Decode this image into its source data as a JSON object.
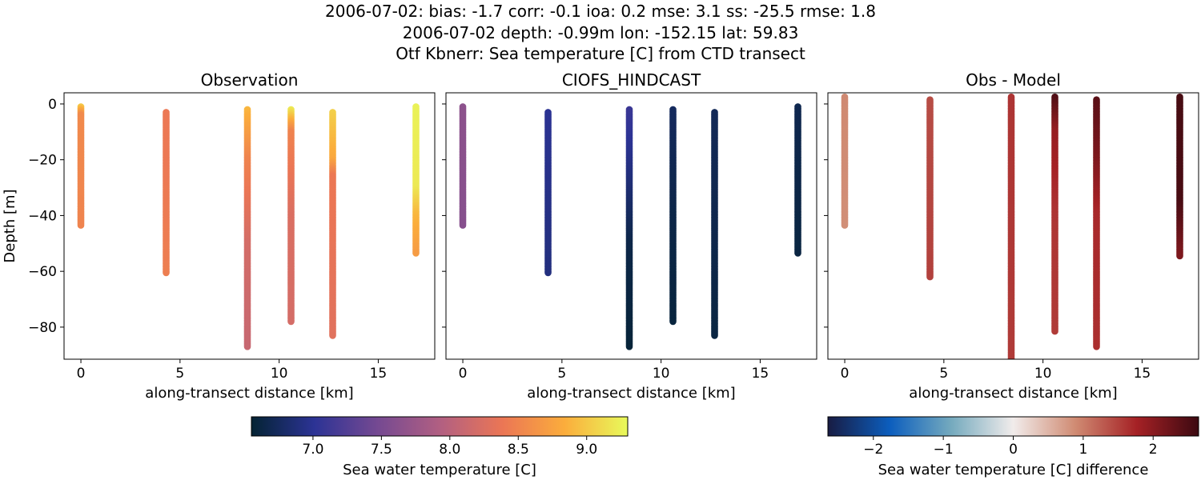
{
  "suptitle": {
    "line1": "2006-07-02: bias: -1.7  corr: -0.1  ioa: 0.2  mse: 3.1  ss: -25.5  rmse: 1.8",
    "line2": "2006-07-02 depth: -0.99m lon: -152.15 lat: 59.83",
    "line3": "Otf Kbnerr: Sea temperature [C] from CTD transect"
  },
  "chart_data": [
    {
      "type": "scatter",
      "title": "Observation",
      "xlabel": "along-transect distance [km]",
      "ylabel": "Depth [m]",
      "xlim": [
        -0.85,
        17.85
      ],
      "ylim": [
        -91.5,
        4.0
      ],
      "xticks": [
        0,
        5,
        10,
        15
      ],
      "yticks": [
        0,
        -20,
        -40,
        -60,
        -80
      ],
      "colormap": "thermal",
      "clim": [
        6.55,
        9.3
      ],
      "grid": false,
      "casts": [
        {
          "x": 0.0,
          "top": -0.99,
          "bottom": -43.5,
          "segments": [
            [
              -0.99,
              9.0
            ],
            [
              -4,
              8.55
            ],
            [
              -43.5,
              8.5
            ]
          ]
        },
        {
          "x": 4.3,
          "top": -3.0,
          "bottom": -60.5,
          "segments": [
            [
              -3.0,
              8.4
            ],
            [
              -20,
              8.4
            ],
            [
              -60.5,
              8.45
            ]
          ]
        },
        {
          "x": 8.4,
          "top": -2.0,
          "bottom": -87.0,
          "segments": [
            [
              -2.0,
              8.9
            ],
            [
              -20,
              8.5
            ],
            [
              -50,
              8.2
            ],
            [
              -87.0,
              8.1
            ]
          ]
        },
        {
          "x": 10.6,
          "top": -2.0,
          "bottom": -78.0,
          "segments": [
            [
              -2.0,
              9.2
            ],
            [
              -10,
              8.5
            ],
            [
              -40,
              8.25
            ],
            [
              -78.0,
              8.2
            ]
          ]
        },
        {
          "x": 12.7,
          "top": -3.0,
          "bottom": -83.0,
          "segments": [
            [
              -3.0,
              9.05
            ],
            [
              -20,
              8.8
            ],
            [
              -26,
              8.4
            ],
            [
              -83.0,
              8.3
            ]
          ]
        },
        {
          "x": 16.9,
          "top": -1.0,
          "bottom": -53.5,
          "segments": [
            [
              -1.0,
              9.25
            ],
            [
              -30,
              9.2
            ],
            [
              -40,
              8.9
            ],
            [
              -53.5,
              8.7
            ]
          ]
        }
      ]
    },
    {
      "type": "scatter",
      "title": "CIOFS_HINDCAST",
      "xlabel": "along-transect distance [km]",
      "ylabel": "",
      "xlim": [
        -0.85,
        17.85
      ],
      "ylim": [
        -91.5,
        4.0
      ],
      "xticks": [
        0,
        5,
        10,
        15
      ],
      "colormap": "thermal",
      "clim": [
        6.55,
        9.3
      ],
      "grid": false,
      "casts": [
        {
          "x": 0.0,
          "top": -0.99,
          "bottom": -43.5,
          "segments": [
            [
              -0.99,
              7.65
            ],
            [
              -43.5,
              7.6
            ]
          ]
        },
        {
          "x": 4.3,
          "top": -3.0,
          "bottom": -60.5,
          "segments": [
            [
              -3.0,
              7.0
            ],
            [
              -30,
              6.95
            ],
            [
              -60.5,
              6.9
            ]
          ]
        },
        {
          "x": 8.4,
          "top": -2.0,
          "bottom": -87.0,
          "segments": [
            [
              -2.0,
              7.1
            ],
            [
              -20,
              6.95
            ],
            [
              -50,
              6.65
            ],
            [
              -87.0,
              6.58
            ]
          ]
        },
        {
          "x": 10.6,
          "top": -2.0,
          "bottom": -78.0,
          "segments": [
            [
              -2.0,
              6.75
            ],
            [
              -40,
              6.65
            ],
            [
              -78.0,
              6.6
            ]
          ]
        },
        {
          "x": 12.7,
          "top": -3.0,
          "bottom": -83.0,
          "segments": [
            [
              -3.0,
              6.72
            ],
            [
              -83.0,
              6.62
            ]
          ]
        },
        {
          "x": 16.9,
          "top": -1.0,
          "bottom": -53.5,
          "segments": [
            [
              -1.0,
              6.68
            ],
            [
              -53.5,
              6.62
            ]
          ]
        }
      ]
    },
    {
      "type": "scatter",
      "title": "Obs - Model",
      "xlabel": "along-transect distance [km]",
      "ylabel": "",
      "xlim": [
        -0.85,
        17.85
      ],
      "ylim": [
        -91.5,
        4.0
      ],
      "xticks": [
        0,
        5,
        10,
        15
      ],
      "colormap": "balance",
      "clim": [
        -2.65,
        2.65
      ],
      "grid": false,
      "casts": [
        {
          "x": 0.0,
          "top": 2.5,
          "bottom": -43.5,
          "segments": [
            [
              2.5,
              0.9
            ],
            [
              -43.5,
              0.85
            ]
          ]
        },
        {
          "x": 4.3,
          "top": 1.5,
          "bottom": -62.0,
          "segments": [
            [
              1.5,
              1.4
            ],
            [
              -62.0,
              1.5
            ]
          ]
        },
        {
          "x": 8.4,
          "top": 2.5,
          "bottom": -91.5,
          "segments": [
            [
              2.5,
              1.6
            ],
            [
              -91.5,
              1.55
            ]
          ]
        },
        {
          "x": 10.6,
          "top": 2.5,
          "bottom": -81.5,
          "segments": [
            [
              2.5,
              2.5
            ],
            [
              -10,
              1.9
            ],
            [
              -40,
              1.6
            ],
            [
              -81.5,
              1.55
            ]
          ]
        },
        {
          "x": 12.7,
          "top": 1.5,
          "bottom": -87.0,
          "segments": [
            [
              1.5,
              2.4
            ],
            [
              -20,
              2.1
            ],
            [
              -40,
              1.7
            ],
            [
              -87.0,
              1.65
            ]
          ]
        },
        {
          "x": 16.9,
          "top": 2.5,
          "bottom": -54.5,
          "segments": [
            [
              2.5,
              2.55
            ],
            [
              -35,
              2.55
            ],
            [
              -54.5,
              2.1
            ]
          ]
        }
      ]
    }
  ],
  "colorbars": [
    {
      "label": "Sea water temperature [C]",
      "colormap": "thermal",
      "clim": [
        6.55,
        9.3
      ],
      "ticks": [
        7.0,
        7.5,
        8.0,
        8.5,
        9.0
      ],
      "tick_labels": [
        "7.0",
        "7.5",
        "8.0",
        "8.5",
        "9.0"
      ]
    },
    {
      "label": "Sea water temperature [C] difference",
      "colormap": "balance",
      "clim": [
        -2.65,
        2.65
      ],
      "ticks": [
        -2,
        -1,
        0,
        1,
        2
      ],
      "tick_labels": [
        "−2",
        "−1",
        "0",
        "1",
        "2"
      ]
    }
  ],
  "colors": {
    "thermal": [
      "#042333",
      "#2c3395",
      "#744992",
      "#b15f82",
      "#eb7655",
      "#fbad3c",
      "#e8fa5b"
    ],
    "balance": [
      "#181c43",
      "#0c5ebe",
      "#75aabe",
      "#f1eceb",
      "#d08b73",
      "#a52125",
      "#3c0911"
    ]
  }
}
